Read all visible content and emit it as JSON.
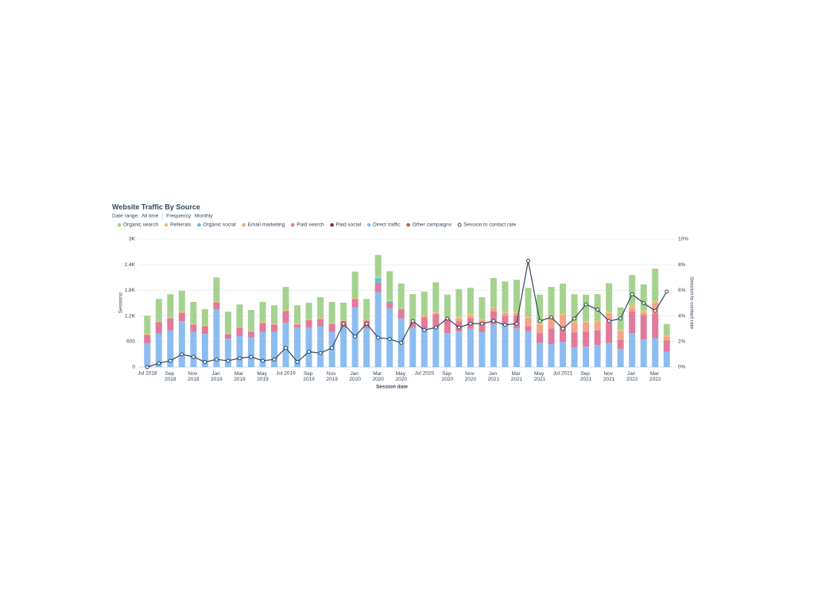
{
  "chart_data": {
    "type": "bar",
    "stacked": true,
    "title": "Website Traffic By Source",
    "filters": [
      {
        "label": "Date range:",
        "value": "All time"
      },
      {
        "label": "Frequency:",
        "value": "Monthly"
      }
    ],
    "x_label": "Session date",
    "y_label": "Sessions",
    "y2_label": "Session to contact rate",
    "grid": true,
    "legend": "top-left",
    "categories": [
      "Jul 2018",
      null,
      "Sep 2018",
      null,
      "Nov 2018",
      null,
      "Jan 2019",
      null,
      "Mar 2019",
      null,
      "May 2019",
      null,
      "Jul 2019",
      null,
      "Sep 2019",
      null,
      "Nov 2019",
      null,
      "Jan 2020",
      null,
      "Mar 2020",
      null,
      "May 2020",
      null,
      "Jul 2020",
      null,
      "Sep 2020",
      null,
      "Nov 2020",
      null,
      "Jan 2021",
      null,
      "Mar 2021",
      null,
      "May 2021",
      null,
      "Jul 2021",
      null,
      "Sep 2021",
      null,
      "Nov 2021",
      null,
      "Jan 2022",
      null,
      "Mar 2022",
      null
    ],
    "ylim": [
      0,
      3000
    ],
    "yticks": [
      0,
      600,
      {
        "value": 1200,
        "label": "1.2K"
      },
      {
        "value": 1800,
        "label": "1.8K"
      },
      {
        "value": 2400,
        "label": "2.4K"
      },
      {
        "value": 3000,
        "label": "3K"
      }
    ],
    "y2lim": [
      0,
      10
    ],
    "y2ticks": [
      {
        "value": 0,
        "label": "0%"
      },
      {
        "value": 2,
        "label": "2%"
      },
      {
        "value": 4,
        "label": "4%"
      },
      {
        "value": 6,
        "label": "6%"
      },
      {
        "value": 8,
        "label": "8%"
      },
      {
        "value": 10,
        "label": "10%"
      }
    ],
    "series": [
      {
        "name": "Organic search",
        "color": "#a5d38f",
        "values": [
          430,
          520,
          540,
          490,
          510,
          380,
          560,
          500,
          520,
          490,
          470,
          430,
          540,
          430,
          390,
          490,
          490,
          410,
          620,
          490,
          520,
          680,
          570,
          630,
          550,
          700,
          520,
          650,
          610,
          520,
          690,
          720,
          760,
          680,
          670,
          660,
          710,
          640,
          620,
          620,
          680,
          530,
          720,
          610,
          760,
          270
        ]
      },
      {
        "name": "Referrals",
        "color": "#f5c16c",
        "values": [
          20,
          20,
          20,
          20,
          20,
          20,
          20,
          20,
          20,
          20,
          20,
          20,
          20,
          20,
          20,
          20,
          20,
          20,
          20,
          20,
          20,
          20,
          20,
          20,
          20,
          20,
          20,
          40,
          40,
          20,
          20,
          20,
          20,
          20,
          30,
          30,
          30,
          30,
          30,
          30,
          30,
          30,
          50,
          50,
          50,
          20
        ]
      },
      {
        "name": "Organic social",
        "color": "#5fc3d4",
        "values": [
          0,
          0,
          0,
          0,
          0,
          0,
          0,
          0,
          0,
          0,
          0,
          0,
          0,
          0,
          0,
          0,
          0,
          0,
          0,
          0,
          110,
          50,
          30,
          0,
          0,
          0,
          0,
          0,
          0,
          0,
          0,
          0,
          0,
          0,
          0,
          0,
          0,
          0,
          0,
          0,
          0,
          0,
          0,
          0,
          0,
          0
        ]
      },
      {
        "name": "Email marketing",
        "color": "#f2a38a",
        "values": [
          0,
          0,
          0,
          0,
          0,
          0,
          0,
          0,
          0,
          0,
          0,
          0,
          0,
          0,
          0,
          0,
          0,
          0,
          0,
          0,
          0,
          0,
          0,
          0,
          30,
          30,
          40,
          60,
          60,
          40,
          70,
          70,
          60,
          200,
          200,
          280,
          290,
          230,
          220,
          200,
          210,
          200,
          80,
          60,
          240,
          90
        ]
      },
      {
        "name": "Paid search",
        "color": "#e27a9b",
        "values": [
          200,
          270,
          290,
          200,
          170,
          180,
          160,
          110,
          200,
          130,
          210,
          170,
          280,
          70,
          170,
          170,
          190,
          160,
          200,
          170,
          220,
          120,
          200,
          130,
          260,
          300,
          320,
          240,
          250,
          240,
          310,
          200,
          300,
          120,
          230,
          370,
          340,
          350,
          350,
          340,
          480,
          210,
          510,
          570,
          580,
          270
        ]
      },
      {
        "name": "Paid social",
        "color": "#7d2d4d",
        "values": [
          0,
          0,
          0,
          0,
          0,
          0,
          0,
          0,
          0,
          0,
          0,
          0,
          0,
          0,
          0,
          0,
          0,
          0,
          0,
          0,
          0,
          0,
          0,
          0,
          0,
          0,
          0,
          0,
          0,
          0,
          0,
          0,
          0,
          0,
          0,
          0,
          0,
          0,
          0,
          0,
          0,
          0,
          0,
          0,
          0,
          0
        ]
      },
      {
        "name": "Direct traffic",
        "color": "#8cbdf2",
        "values": [
          560,
          790,
          860,
          1080,
          830,
          780,
          1360,
          670,
          730,
          700,
          830,
          830,
          1040,
          930,
          930,
          960,
          830,
          920,
          1400,
          920,
          1760,
          1380,
          1140,
          930,
          910,
          940,
          800,
          840,
          900,
          820,
          1000,
          1000,
          910,
          840,
          570,
          540,
          590,
          460,
          480,
          520,
          570,
          430,
          800,
          650,
          680,
          360
        ]
      },
      {
        "name": "Other campaigns",
        "color": "#c05a4a",
        "values": [
          0,
          0,
          0,
          0,
          0,
          0,
          0,
          0,
          0,
          0,
          0,
          0,
          0,
          0,
          0,
          0,
          0,
          0,
          0,
          0,
          0,
          0,
          0,
          0,
          0,
          0,
          0,
          0,
          0,
          0,
          0,
          0,
          0,
          0,
          0,
          0,
          0,
          0,
          0,
          0,
          0,
          0,
          0,
          0,
          0,
          0
        ]
      },
      {
        "name": "Session to contact rate",
        "type": "line",
        "axis": "y2",
        "color": "#33475b",
        "values": [
          0,
          0.3,
          0.5,
          1.0,
          0.8,
          0.4,
          0.6,
          0.5,
          0.7,
          0.8,
          0.5,
          0.6,
          1.5,
          0.4,
          1.2,
          1.1,
          1.5,
          3.4,
          2.4,
          3.4,
          2.3,
          2.2,
          1.9,
          3.6,
          2.9,
          3.1,
          3.8,
          3.1,
          3.4,
          3.4,
          3.6,
          3.3,
          3.4,
          8.3,
          3.6,
          3.9,
          3.0,
          3.8,
          4.9,
          4.5,
          3.6,
          3.8,
          5.7,
          5.0,
          4.4,
          5.9
        ]
      }
    ]
  }
}
